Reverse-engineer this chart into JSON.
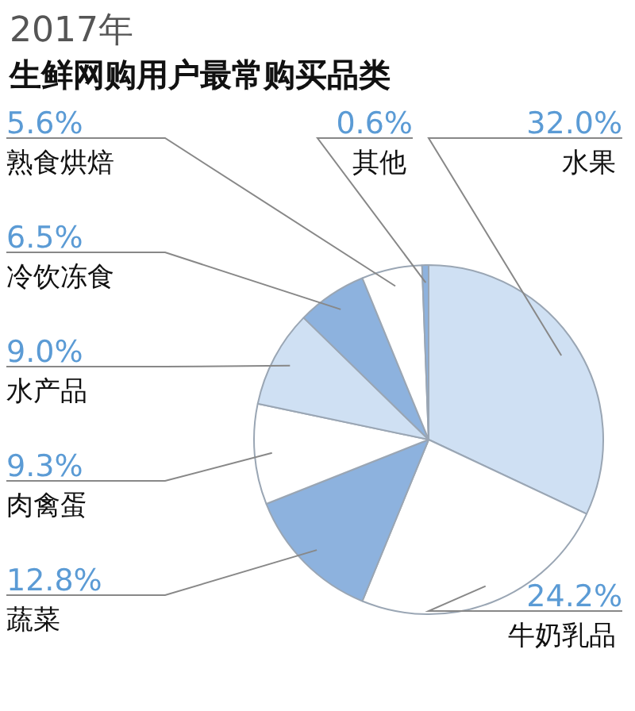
{
  "chart_data": {
    "type": "pie",
    "title": "2017年",
    "subtitle": "生鲜网购用户最常购买品类",
    "categories": [
      "水果",
      "牛奶乳品",
      "蔬菜",
      "肉禽蛋",
      "水产品",
      "冷饮冻食",
      "熟食烘焙",
      "其他"
    ],
    "values": [
      32.0,
      24.2,
      12.8,
      9.3,
      9.0,
      6.5,
      5.6,
      0.6
    ],
    "colors": [
      "#cfe0f3",
      "#ffffff",
      "#8db2de",
      "#ffffff",
      "#cfe0f3",
      "#8db2de",
      "#ffffff",
      "#8db2de"
    ],
    "value_labels": [
      "32.0%",
      "24.2%",
      "12.8%",
      "9.3%",
      "9.0%",
      "6.5%",
      "5.6%",
      "0.6%"
    ],
    "legend": false
  }
}
